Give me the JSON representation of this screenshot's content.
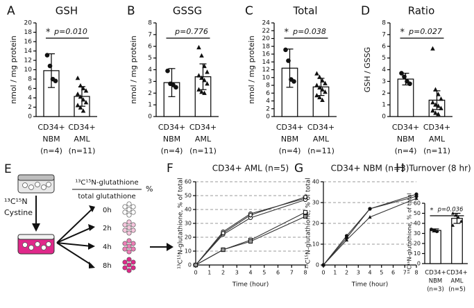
{
  "chart_data": [
    {
      "panel": "A",
      "type": "bar",
      "title": "GSH",
      "ylabel": "nmol / mg protein",
      "categories": [
        [
          "CD34+",
          "NBM",
          "(n=4)"
        ],
        [
          "CD34+",
          "AML",
          "(n=11)"
        ]
      ],
      "values": [
        9.8,
        4.3
      ],
      "errors": [
        3.6,
        2.1
      ],
      "points": [
        [
          13.1,
          10.8,
          8.0,
          7.6
        ],
        [
          8.2,
          6.6,
          6.0,
          5.5,
          4.8,
          4.2,
          3.6,
          3.0,
          2.4,
          1.9,
          1.2
        ]
      ],
      "markers": [
        "circle",
        "triangle"
      ],
      "color": "#ffffff",
      "significance": {
        "star": "*",
        "p_label": "p=0.010"
      },
      "ylim": [
        0,
        20
      ],
      "yticks": [
        0,
        2,
        4,
        6,
        8,
        10,
        12,
        14,
        16,
        18,
        20
      ]
    },
    {
      "panel": "B",
      "type": "bar",
      "title": "GSSG",
      "ylabel": "nmol / mg protein",
      "categories": [
        [
          "CD34+",
          "NBM",
          "(n=4)"
        ],
        [
          "CD34+",
          "AML",
          "(n=11)"
        ]
      ],
      "values": [
        2.9,
        3.4
      ],
      "errors": [
        1.2,
        1.1
      ],
      "points": [
        [
          3.9,
          2.8,
          2.7,
          2.5
        ],
        [
          5.9,
          5.2,
          4.3,
          3.8,
          3.5,
          3.3,
          3.1,
          2.8,
          2.3,
          2.1,
          2.0
        ]
      ],
      "markers": [
        "circle",
        "triangle"
      ],
      "color": "#ffffff",
      "significance": {
        "p_label": "p=0.776"
      },
      "ylim": [
        0,
        8
      ],
      "yticks": [
        0,
        1,
        2,
        3,
        4,
        5,
        6,
        7,
        8
      ]
    },
    {
      "panel": "C",
      "type": "bar",
      "title": "Total",
      "ylabel": "nmol / mg protein",
      "categories": [
        [
          "CD34+",
          "NBM",
          "(n=4)"
        ],
        [
          "CD34+",
          "AML",
          "(n=11)"
        ]
      ],
      "values": [
        12.4,
        7.6
      ],
      "errors": [
        4.9,
        2.2
      ],
      "points": [
        [
          17.1,
          14.3,
          9.5,
          9.0
        ],
        [
          11.0,
          10.1,
          9.2,
          8.5,
          8.0,
          7.4,
          6.9,
          6.3,
          5.4,
          4.9,
          4.2
        ]
      ],
      "markers": [
        "circle",
        "triangle"
      ],
      "color": "#ffffff",
      "significance": {
        "star": "*",
        "p_label": "p=0.038"
      },
      "ylim": [
        0,
        24
      ],
      "yticks": [
        0,
        2,
        4,
        6,
        8,
        10,
        12,
        14,
        16,
        18,
        20,
        22,
        24
      ]
    },
    {
      "panel": "D",
      "type": "bar",
      "title": "Ratio",
      "ylabel": "GSH / GSSG",
      "categories": [
        [
          "CD34+",
          "NBM",
          "(n=4)"
        ],
        [
          "CD34+",
          "AML",
          "(n=11)"
        ]
      ],
      "values": [
        3.2,
        1.4
      ],
      "errors": [
        0.5,
        0.8
      ],
      "points": [
        [
          3.7,
          3.4,
          3.0,
          2.8
        ],
        [
          5.8,
          2.3,
          1.9,
          1.5,
          1.2,
          1.0,
          0.9,
          0.7,
          0.5,
          0.3,
          0.2
        ]
      ],
      "markers": [
        "circle",
        "triangle"
      ],
      "color": "#ffffff",
      "significance": {
        "star": "*",
        "p_label": "p=0.027"
      },
      "ylim": [
        0,
        8
      ],
      "yticks": [
        0,
        1,
        2,
        3,
        4,
        5,
        6,
        7,
        8
      ]
    },
    {
      "panel": "F",
      "type": "line",
      "title": "CD34+ AML (n=5)",
      "xlabel": "Time (hour)",
      "ylabel": "¹³C¹⁵N-glutathione, % of total",
      "x": [
        0,
        2,
        4,
        8
      ],
      "xlim": [
        0,
        8
      ],
      "xticks": [
        0,
        1,
        2,
        3,
        4,
        5,
        6,
        7,
        8
      ],
      "ylim": [
        0,
        60
      ],
      "yticks": [
        0,
        10,
        20,
        30,
        40,
        50,
        60
      ],
      "grid": true,
      "grid_style": "dashed",
      "series": [
        {
          "color": "#333333",
          "marker": "circle-open",
          "values": [
            0,
            24,
            37,
            48
          ]
        },
        {
          "color": "#333333",
          "marker": "circle-open",
          "values": [
            0,
            22,
            34,
            47
          ]
        },
        {
          "color": "#333333",
          "marker": "diamond-open",
          "values": [
            0,
            23,
            36,
            49
          ]
        },
        {
          "color": "#333333",
          "marker": "square-open",
          "values": [
            0,
            11,
            18,
            38
          ]
        },
        {
          "color": "#333333",
          "marker": "square-half",
          "values": [
            0,
            11,
            17,
            35
          ]
        }
      ]
    },
    {
      "panel": "G",
      "type": "line",
      "title": "CD34+ NBM (n=3)",
      "xlabel": "Time (hour)",
      "ylabel": "¹³C¹⁵N-glutathione, % of total",
      "x": [
        0,
        2,
        4,
        8
      ],
      "xlim": [
        0,
        8
      ],
      "xticks": [
        0,
        1,
        2,
        3,
        4,
        5,
        6,
        7,
        8
      ],
      "ylim": [
        0,
        40
      ],
      "yticks": [
        0,
        10,
        20,
        30,
        40
      ],
      "grid": true,
      "grid_style": "dashed",
      "series": [
        {
          "color": "#333333",
          "marker": "circle-filled",
          "values": [
            0,
            14,
            27,
            33
          ]
        },
        {
          "color": "#333333",
          "marker": "circle-filled",
          "values": [
            0,
            13,
            27,
            34
          ]
        },
        {
          "color": "#333333",
          "marker": "triangle",
          "values": [
            0,
            12,
            23,
            32
          ]
        }
      ]
    },
    {
      "panel": "H",
      "type": "bar",
      "title": "Turnover (8 hr)",
      "ylabel": "¹³C¹⁵N-glutathione, % of total",
      "categories": [
        [
          "CD34+",
          "NBM",
          "(n=3)"
        ],
        [
          "CD34+",
          "AML",
          "(n=5)"
        ]
      ],
      "values": [
        33,
        45
      ],
      "errors": [
        1.5,
        5
      ],
      "points": [
        [
          34,
          33,
          32
        ],
        [
          50,
          48,
          46,
          42,
          38
        ]
      ],
      "markers": [
        "circle",
        "triangle"
      ],
      "color": "#ffffff",
      "significance": {
        "star": "*",
        "p_label": "p=0.036"
      },
      "ylim": [
        0,
        60
      ],
      "yticks": [
        0,
        10,
        20,
        30,
        40,
        50,
        60
      ]
    }
  ],
  "diagram": {
    "panel": "E",
    "isotope": "¹³C¹⁵N",
    "substrate": "Cystine",
    "ratio_numerator": "¹³C¹⁵N-glutathione",
    "ratio_denominator": "total glutathione",
    "percent": "%",
    "timepoints": [
      "0h",
      "2h",
      "4h",
      "8h"
    ]
  }
}
